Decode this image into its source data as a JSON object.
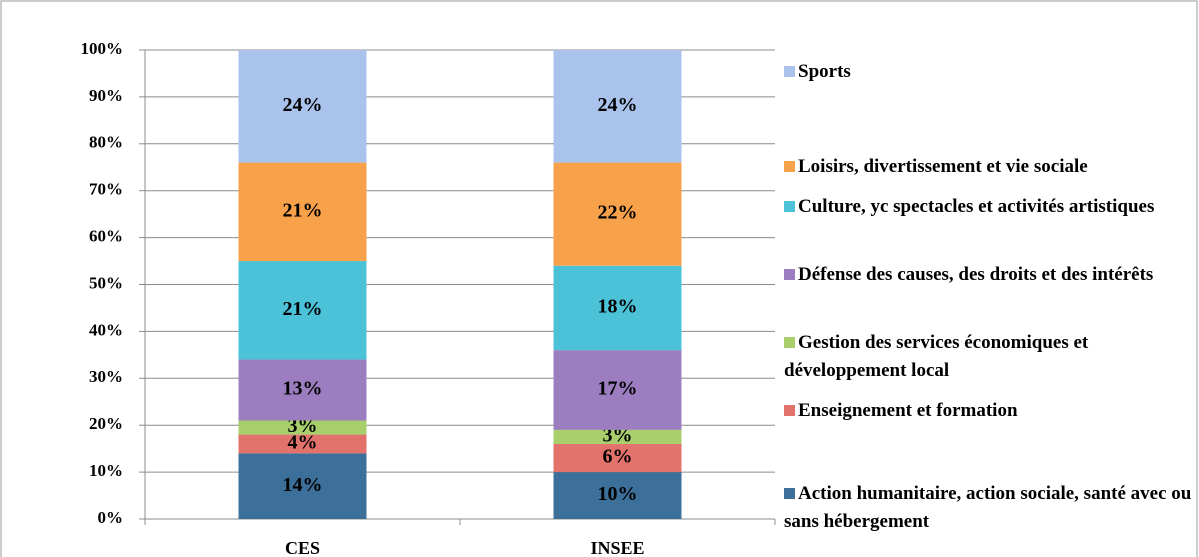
{
  "chart_data": {
    "type": "stacked_bar",
    "categories": [
      "CES",
      "INSEE"
    ],
    "series": [
      {
        "name": "Action humanitaire, action sociale, santé avec ou sans hébergement",
        "color": "#3c6f99",
        "values": [
          14,
          10
        ],
        "value_labels": [
          "14%",
          "10%"
        ]
      },
      {
        "name": "Enseignement et formation",
        "color": "#e3716c",
        "values": [
          4,
          6
        ],
        "value_labels": [
          "4%",
          "6%"
        ]
      },
      {
        "name": "Gestion des services économiques et développement local",
        "color": "#a8cf6c",
        "values": [
          3,
          3
        ],
        "value_labels": [
          "3%",
          "3%"
        ]
      },
      {
        "name": "Défense des causes, des droits et des intérêts",
        "color": "#9c7dbf",
        "values": [
          13,
          17
        ],
        "value_labels": [
          "13%",
          "17%"
        ]
      },
      {
        "name": "Culture, yc spectacles et activités artistiques",
        "color": "#4cc2d9",
        "values": [
          21,
          18
        ],
        "value_labels": [
          "21%",
          "18%"
        ]
      },
      {
        "name": "Loisirs, divertissement et vie sociale",
        "color": "#f7a24a",
        "values": [
          21,
          22
        ],
        "value_labels": [
          "21%",
          "22%"
        ]
      },
      {
        "name": "Sports",
        "color": "#aac3ec",
        "values": [
          24,
          24
        ],
        "value_labels": [
          "24%",
          "24%"
        ]
      }
    ],
    "ylim": [
      0,
      100
    ],
    "yticks": [
      {
        "value": 0,
        "label": "0%"
      },
      {
        "value": 10,
        "label": "10%"
      },
      {
        "value": 20,
        "label": "20%"
      },
      {
        "value": 30,
        "label": "30%"
      },
      {
        "value": 40,
        "label": "40%"
      },
      {
        "value": 50,
        "label": "50%"
      },
      {
        "value": 60,
        "label": "60%"
      },
      {
        "value": 70,
        "label": "70%"
      },
      {
        "value": 80,
        "label": "80%"
      },
      {
        "value": 90,
        "label": "90%"
      },
      {
        "value": 100,
        "label": "100%"
      }
    ],
    "grid": true,
    "legend": "right"
  }
}
